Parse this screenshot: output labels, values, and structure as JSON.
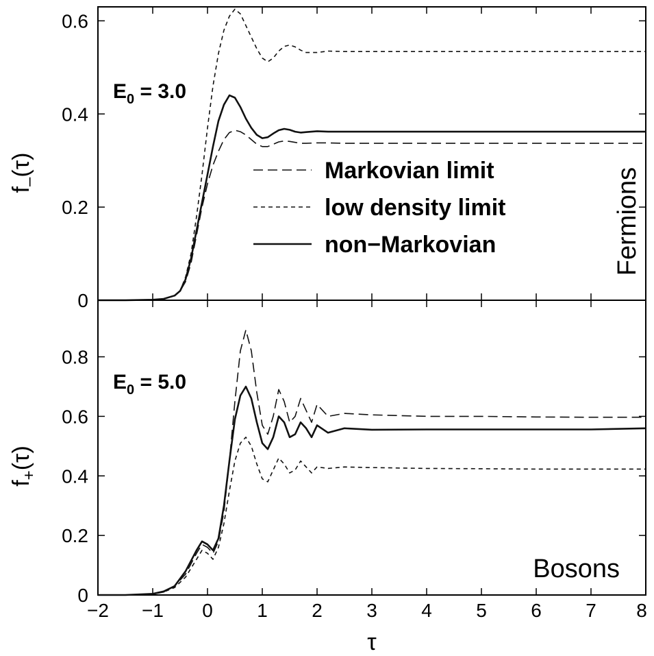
{
  "colors": {
    "frame": "#000000",
    "series_stroke": "#111111",
    "background": "#ffffff"
  },
  "chart_data": [
    {
      "type": "line",
      "panel": "top",
      "ylabel_base": "f",
      "ylabel_sub": "–",
      "ylabel_tail": "(τ)",
      "xlim": [
        -2,
        8
      ],
      "ylim": [
        0,
        0.63
      ],
      "yticks": [
        0,
        0.2,
        0.4,
        0.6
      ],
      "yticklabels": [
        "0",
        "0.2",
        "0.4",
        "0.6"
      ],
      "annotation": {
        "base": "E",
        "sub": "0",
        "tail": " = 3.0"
      },
      "side_label": "Fermions",
      "legend": {
        "position": "center-right",
        "entries": [
          "Markovian limit",
          "low density limit",
          "non−Markovian"
        ]
      },
      "x": [
        -2,
        -1.5,
        -1,
        -0.8,
        -0.6,
        -0.5,
        -0.4,
        -0.3,
        -0.2,
        -0.1,
        0,
        0.1,
        0.2,
        0.3,
        0.4,
        0.5,
        0.6,
        0.7,
        0.8,
        0.9,
        1.0,
        1.1,
        1.2,
        1.3,
        1.4,
        1.5,
        1.6,
        1.7,
        1.8,
        2.0,
        2.2,
        2.5,
        3,
        4,
        5,
        6,
        7,
        8
      ],
      "series": [
        {
          "style": "long-dash",
          "values": [
            0,
            0,
            0.001,
            0.003,
            0.01,
            0.02,
            0.04,
            0.08,
            0.14,
            0.2,
            0.25,
            0.29,
            0.32,
            0.345,
            0.36,
            0.365,
            0.362,
            0.355,
            0.345,
            0.335,
            0.33,
            0.33,
            0.335,
            0.34,
            0.342,
            0.341,
            0.339,
            0.337,
            0.337,
            0.338,
            0.338,
            0.337,
            0.337,
            0.337,
            0.337,
            0.337,
            0.337,
            0.337
          ]
        },
        {
          "style": "short-dash",
          "values": [
            0,
            0,
            0.001,
            0.003,
            0.01,
            0.02,
            0.05,
            0.1,
            0.18,
            0.27,
            0.37,
            0.46,
            0.53,
            0.58,
            0.61,
            0.625,
            0.615,
            0.59,
            0.565,
            0.54,
            0.52,
            0.512,
            0.52,
            0.535,
            0.545,
            0.548,
            0.544,
            0.537,
            0.532,
            0.532,
            0.535,
            0.534,
            0.534,
            0.534,
            0.534,
            0.534,
            0.534,
            0.534
          ]
        },
        {
          "style": "solid",
          "values": [
            0,
            0,
            0.001,
            0.003,
            0.01,
            0.02,
            0.045,
            0.09,
            0.15,
            0.21,
            0.27,
            0.33,
            0.385,
            0.42,
            0.44,
            0.435,
            0.415,
            0.39,
            0.37,
            0.355,
            0.348,
            0.35,
            0.358,
            0.365,
            0.368,
            0.366,
            0.362,
            0.36,
            0.361,
            0.363,
            0.362,
            0.362,
            0.362,
            0.362,
            0.362,
            0.362,
            0.362,
            0.362
          ]
        }
      ]
    },
    {
      "type": "line",
      "panel": "bottom",
      "ylabel_base": "f",
      "ylabel_sub": "+",
      "ylabel_tail": "(τ)",
      "xlabel": "τ",
      "xlim": [
        -2,
        8
      ],
      "ylim": [
        0,
        0.99
      ],
      "xticks": [
        -2,
        -1,
        0,
        1,
        2,
        3,
        4,
        5,
        6,
        7,
        8
      ],
      "xticklabels": [
        "−2",
        "−1",
        "0",
        "1",
        "2",
        "3",
        "4",
        "5",
        "6",
        "7",
        "8"
      ],
      "yticks": [
        0,
        0.2,
        0.4,
        0.6,
        0.8
      ],
      "yticklabels": [
        "0",
        "0.2",
        "0.4",
        "0.6",
        "0.8"
      ],
      "annotation": {
        "base": "E",
        "sub": "0",
        "tail": " = 5.0"
      },
      "side_label": "Bosons",
      "x": [
        -2,
        -1.5,
        -1,
        -0.8,
        -0.6,
        -0.4,
        -0.2,
        -0.1,
        0,
        0.1,
        0.2,
        0.3,
        0.4,
        0.5,
        0.6,
        0.7,
        0.8,
        0.9,
        1.0,
        1.1,
        1.2,
        1.3,
        1.4,
        1.5,
        1.6,
        1.7,
        1.8,
        1.9,
        2.0,
        2.2,
        2.5,
        3,
        4,
        5,
        6,
        7,
        8
      ],
      "series": [
        {
          "style": "long-dash",
          "values": [
            0,
            0,
            0.003,
            0.01,
            0.03,
            0.07,
            0.14,
            0.17,
            0.16,
            0.14,
            0.18,
            0.28,
            0.45,
            0.65,
            0.82,
            0.89,
            0.82,
            0.68,
            0.57,
            0.54,
            0.6,
            0.69,
            0.65,
            0.58,
            0.6,
            0.66,
            0.62,
            0.58,
            0.64,
            0.6,
            0.61,
            0.605,
            0.6,
            0.6,
            0.598,
            0.597,
            0.597
          ]
        },
        {
          "style": "short-dash",
          "values": [
            0,
            0,
            0.003,
            0.01,
            0.025,
            0.06,
            0.12,
            0.15,
            0.14,
            0.12,
            0.16,
            0.24,
            0.35,
            0.45,
            0.51,
            0.53,
            0.5,
            0.44,
            0.39,
            0.38,
            0.42,
            0.46,
            0.44,
            0.41,
            0.42,
            0.45,
            0.43,
            0.41,
            0.43,
            0.425,
            0.43,
            0.428,
            0.425,
            0.424,
            0.423,
            0.423,
            0.423
          ]
        },
        {
          "style": "solid",
          "values": [
            0,
            0,
            0.004,
            0.012,
            0.03,
            0.08,
            0.15,
            0.18,
            0.17,
            0.15,
            0.19,
            0.3,
            0.45,
            0.59,
            0.67,
            0.7,
            0.66,
            0.58,
            0.51,
            0.49,
            0.53,
            0.6,
            0.58,
            0.53,
            0.54,
            0.58,
            0.56,
            0.53,
            0.57,
            0.545,
            0.56,
            0.555,
            0.556,
            0.556,
            0.556,
            0.556,
            0.56
          ]
        }
      ]
    }
  ]
}
